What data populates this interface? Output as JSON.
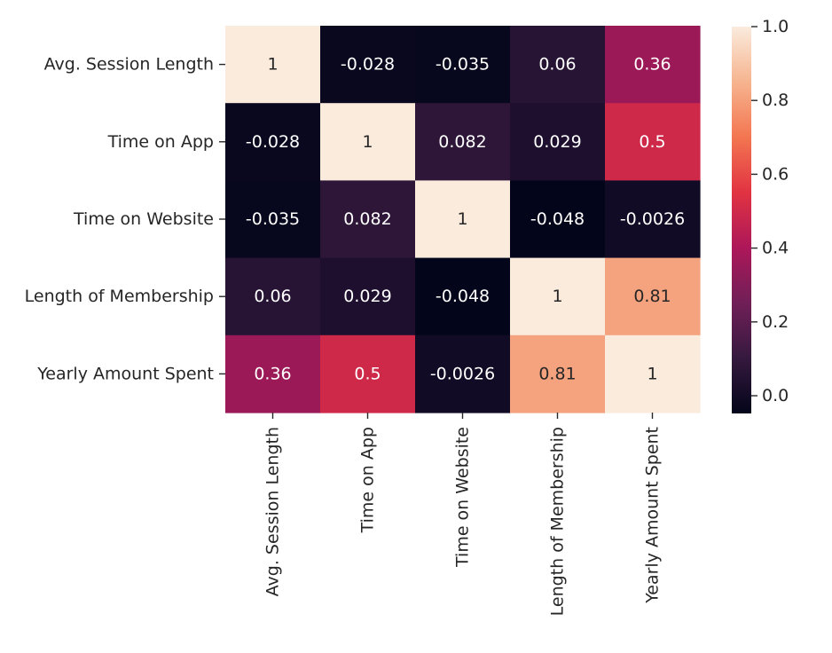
{
  "chart_data": {
    "type": "heatmap",
    "rows": [
      "Avg. Session Length",
      "Time on App",
      "Time on Website",
      "Length of Membership",
      "Yearly Amount Spent"
    ],
    "columns": [
      "Avg. Session Length",
      "Time on App",
      "Time on Website",
      "Length of Membership",
      "Yearly Amount Spent"
    ],
    "values": [
      [
        1,
        -0.028,
        -0.035,
        0.06,
        0.36
      ],
      [
        -0.028,
        1,
        0.082,
        0.029,
        0.5
      ],
      [
        -0.035,
        0.082,
        1,
        -0.048,
        -0.0026
      ],
      [
        0.06,
        0.029,
        -0.048,
        1,
        0.81
      ],
      [
        0.36,
        0.5,
        -0.0026,
        0.81,
        1
      ]
    ],
    "value_labels": [
      [
        "1",
        "-0.028",
        "-0.035",
        "0.06",
        "0.36"
      ],
      [
        "-0.028",
        "1",
        "0.082",
        "0.029",
        "0.5"
      ],
      [
        "-0.035",
        "0.082",
        "1",
        "-0.048",
        "-0.0026"
      ],
      [
        "0.06",
        "0.029",
        "-0.048",
        "1",
        "0.81"
      ],
      [
        "0.36",
        "0.5",
        "-0.0026",
        "0.81",
        "1"
      ]
    ],
    "colorbar": {
      "range": [
        -0.048,
        1.0
      ],
      "ticks": [
        0.0,
        0.2,
        0.4,
        0.6,
        0.8,
        1.0
      ],
      "tick_labels": [
        "0.0",
        "0.2",
        "0.4",
        "0.6",
        "0.8",
        "1.0"
      ],
      "colormap": "rocket",
      "stops": [
        "#03051a",
        "#35193e",
        "#701f57",
        "#ad1759",
        "#e13342",
        "#f37651",
        "#f6b48f",
        "#faebdd"
      ]
    }
  }
}
